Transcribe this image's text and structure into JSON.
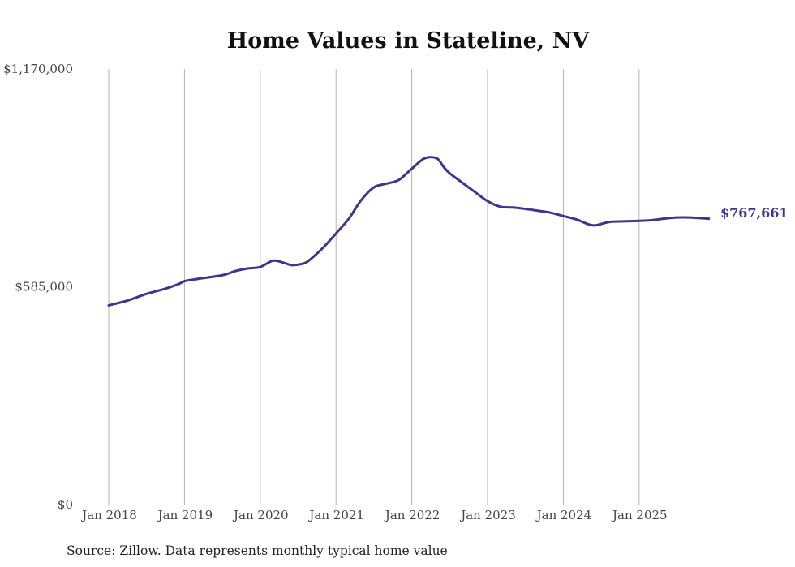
{
  "chart_data": {
    "type": "line",
    "title": "Home Values in Stateline, NV",
    "xlabel": "",
    "ylabel": "",
    "ylim": [
      0,
      1170000
    ],
    "y_ticks": [
      {
        "value": 0,
        "label": "$0"
      },
      {
        "value": 585000,
        "label": "$585,000"
      },
      {
        "value": 1170000,
        "label": "$1,170,000"
      }
    ],
    "x_ticks": [
      {
        "value": 2018.0,
        "label": "Jan 2018"
      },
      {
        "value": 2019.0,
        "label": "Jan 2019"
      },
      {
        "value": 2020.0,
        "label": "Jan 2020"
      },
      {
        "value": 2021.0,
        "label": "Jan 2021"
      },
      {
        "value": 2022.0,
        "label": "Jan 2022"
      },
      {
        "value": 2023.0,
        "label": "Jan 2023"
      },
      {
        "value": 2024.0,
        "label": "Jan 2024"
      },
      {
        "value": 2025.0,
        "label": "Jan 2025"
      }
    ],
    "xlim": [
      2018.0,
      2025.92
    ],
    "grid": "vertical",
    "color": "#3d3591",
    "end_label": "$767,661",
    "series": [
      {
        "name": "Typical home value",
        "x": [
          2018.0,
          2018.25,
          2018.5,
          2018.75,
          2018.92,
          2019.0,
          2019.17,
          2019.5,
          2019.67,
          2019.83,
          2020.0,
          2020.17,
          2020.33,
          2020.42,
          2020.58,
          2020.67,
          2020.83,
          2021.0,
          2021.17,
          2021.33,
          2021.5,
          2021.67,
          2021.83,
          2022.0,
          2022.17,
          2022.33,
          2022.42,
          2022.5,
          2022.67,
          2022.83,
          2023.0,
          2023.17,
          2023.33,
          2023.5,
          2023.67,
          2023.83,
          2024.0,
          2024.17,
          2024.33,
          2024.42,
          2024.58,
          2024.67,
          2024.83,
          2025.0,
          2025.17,
          2025.33,
          2025.5,
          2025.67,
          2025.92
        ],
        "values": [
          535000,
          548000,
          566000,
          580000,
          592000,
          600000,
          606000,
          616000,
          627000,
          634000,
          638000,
          655000,
          648000,
          643000,
          648000,
          660000,
          690000,
          728000,
          768000,
          817000,
          852000,
          862000,
          872000,
          902000,
          930000,
          930000,
          907000,
          890000,
          864000,
          840000,
          815000,
          800000,
          798000,
          794000,
          789000,
          784000,
          775000,
          766000,
          753000,
          750000,
          758000,
          760000,
          761000,
          762000,
          764000,
          768000,
          771000,
          771000,
          767661
        ]
      }
    ]
  },
  "footer": {
    "source": "Source: Zillow. Data represents monthly typical home value"
  }
}
